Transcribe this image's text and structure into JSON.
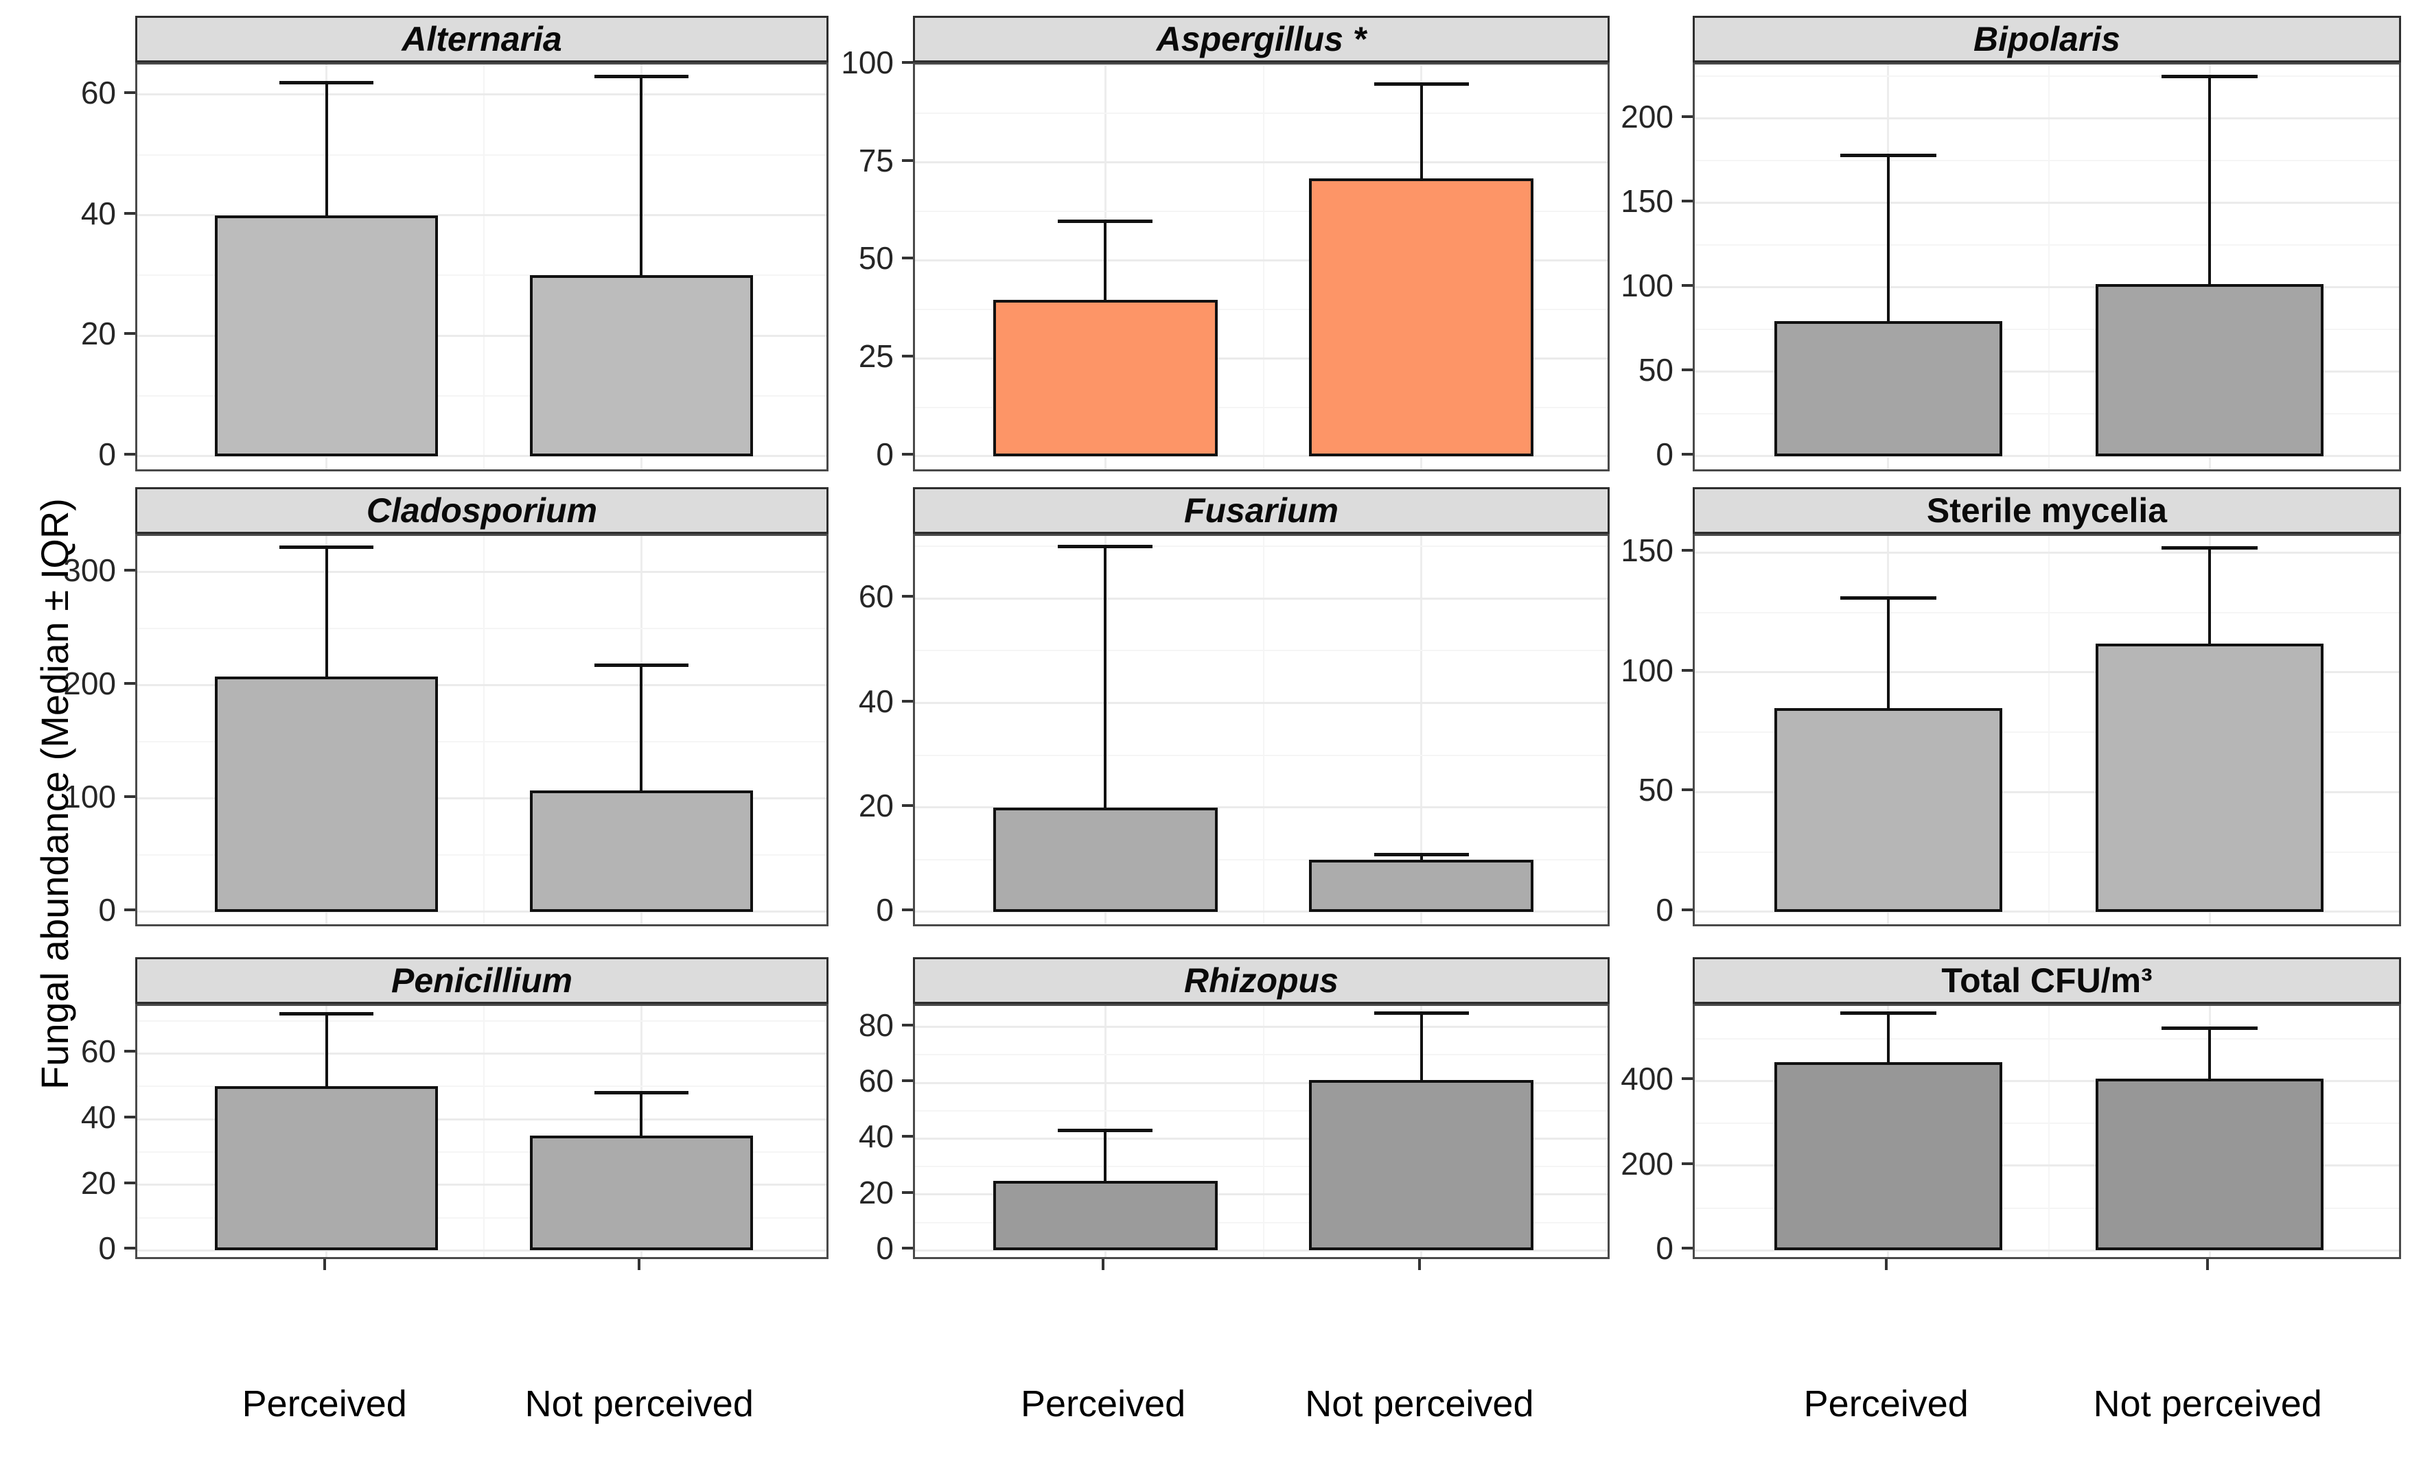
{
  "figure": {
    "y_axis_title": "Fungal abundance (Median ± IQR)"
  },
  "chart_data": {
    "type": "bar",
    "title": "",
    "xlabel": "",
    "ylabel": "Fungal abundance (Median ± IQR)",
    "categories": [
      "Perceived",
      "Not perceived"
    ],
    "legend": "none",
    "grid": "on",
    "layout": "3x3 facet grid, bars show median with upper IQR whisker",
    "highlight_color": "#FD9567",
    "facets": [
      {
        "title": "Alternaria",
        "italic": true,
        "fill": "#BCBCBC",
        "yticks": [
          0,
          20,
          40,
          60
        ],
        "ylim": [
          0,
          65
        ],
        "values": [
          40,
          30
        ],
        "upper_whisker": [
          62,
          63
        ]
      },
      {
        "title": "Aspergillus *",
        "italic": true,
        "fill": "#FD9567",
        "yticks": [
          0,
          25,
          50,
          75,
          100
        ],
        "ylim": [
          0,
          100
        ],
        "values": [
          40,
          71
        ],
        "upper_whisker": [
          60,
          95
        ]
      },
      {
        "title": "Bipolaris",
        "italic": true,
        "fill": "#A5A5A5",
        "yticks": [
          0,
          50,
          100,
          150,
          200
        ],
        "ylim": [
          0,
          232
        ],
        "values": [
          80,
          102
        ],
        "upper_whisker": [
          178,
          225
        ]
      },
      {
        "title": "Cladosporium",
        "italic": true,
        "fill": "#B4B4B4",
        "yticks": [
          0,
          100,
          200,
          300
        ],
        "ylim": [
          0,
          332
        ],
        "values": [
          208,
          107
        ],
        "upper_whisker": [
          322,
          218
        ]
      },
      {
        "title": "Fusarium",
        "italic": true,
        "fill": "#ACACAC",
        "yticks": [
          0,
          20,
          40,
          60
        ],
        "ylim": [
          0,
          72
        ],
        "values": [
          20,
          10
        ],
        "upper_whisker": [
          70,
          11
        ]
      },
      {
        "title": "Sterile mycelia",
        "italic": false,
        "fill": "#B6B6B6",
        "yticks": [
          0,
          50,
          100,
          150
        ],
        "ylim": [
          0,
          157
        ],
        "values": [
          85,
          112
        ],
        "upper_whisker": [
          131,
          152
        ]
      },
      {
        "title": "Penicillium",
        "italic": true,
        "fill": "#ABABAB",
        "yticks": [
          0,
          20,
          40,
          60
        ],
        "ylim": [
          0,
          74.5
        ],
        "values": [
          50,
          35
        ],
        "upper_whisker": [
          72,
          48
        ]
      },
      {
        "title": "Rhizopus",
        "italic": true,
        "fill": "#9B9B9B",
        "yticks": [
          0,
          20,
          40,
          60,
          80
        ],
        "ylim": [
          0,
          87.5
        ],
        "values": [
          25,
          61
        ],
        "upper_whisker": [
          43,
          85
        ]
      },
      {
        "title": "Total CFU/m³",
        "italic": false,
        "fill": "#979797",
        "yticks": [
          0,
          200,
          400
        ],
        "ylim": [
          0,
          577
        ],
        "values": [
          445,
          405
        ],
        "upper_whisker": [
          560,
          525
        ]
      }
    ]
  }
}
